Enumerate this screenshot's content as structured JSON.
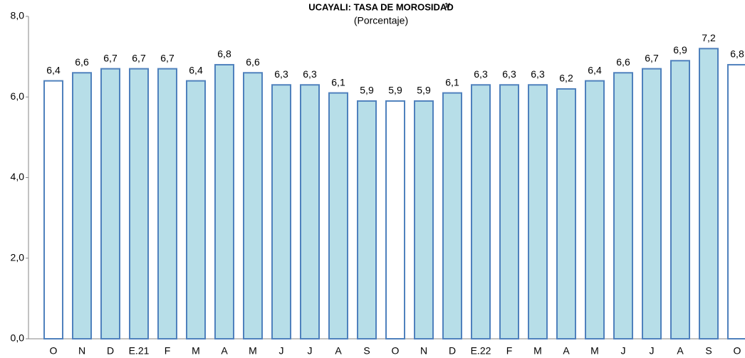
{
  "chart_data": {
    "type": "bar",
    "title": "UCAYALI: TASA DE MOROSIDAD",
    "title_note": "1/",
    "subtitle": "(Porcentaje)",
    "categories": [
      "O",
      "N",
      "D",
      "E.21",
      "F",
      "M",
      "A",
      "M",
      "J",
      "J",
      "A",
      "S",
      "O",
      "N",
      "D",
      "E.22",
      "F",
      "M",
      "A",
      "M",
      "J",
      "J",
      "A",
      "S",
      "O"
    ],
    "values": [
      6.4,
      6.6,
      6.7,
      6.7,
      6.7,
      6.4,
      6.8,
      6.6,
      6.3,
      6.3,
      6.1,
      5.9,
      5.9,
      5.9,
      6.1,
      6.3,
      6.3,
      6.3,
      6.2,
      6.4,
      6.6,
      6.7,
      6.9,
      7.2,
      6.8
    ],
    "value_labels": [
      "6,4",
      "6,6",
      "6,7",
      "6,7",
      "6,7",
      "6,4",
      "6,8",
      "6,6",
      "6,3",
      "6,3",
      "6,1",
      "5,9",
      "5,9",
      "5,9",
      "6,1",
      "6,3",
      "6,3",
      "6,3",
      "6,2",
      "6,4",
      "6,6",
      "6,7",
      "6,9",
      "7,2",
      "6,8"
    ],
    "colors": [
      "#ffffff",
      "#b7dee8",
      "#b7dee8",
      "#b7dee8",
      "#b7dee8",
      "#b7dee8",
      "#b7dee8",
      "#b7dee8",
      "#b7dee8",
      "#b7dee8",
      "#b7dee8",
      "#b7dee8",
      "#ffffff",
      "#b7dee8",
      "#b7dee8",
      "#b7dee8",
      "#b7dee8",
      "#b7dee8",
      "#b7dee8",
      "#b7dee8",
      "#b7dee8",
      "#b7dee8",
      "#b7dee8",
      "#b7dee8",
      "#ffffff"
    ],
    "edge_color": "#4f81bd",
    "ylim": [
      0,
      8
    ],
    "yticks": [
      {
        "value": 0,
        "label": "0,0"
      },
      {
        "value": 2,
        "label": "2,0"
      },
      {
        "value": 4,
        "label": "4,0"
      },
      {
        "value": 6,
        "label": "6,0"
      },
      {
        "value": 8,
        "label": "8,0"
      }
    ],
    "grid": false
  }
}
